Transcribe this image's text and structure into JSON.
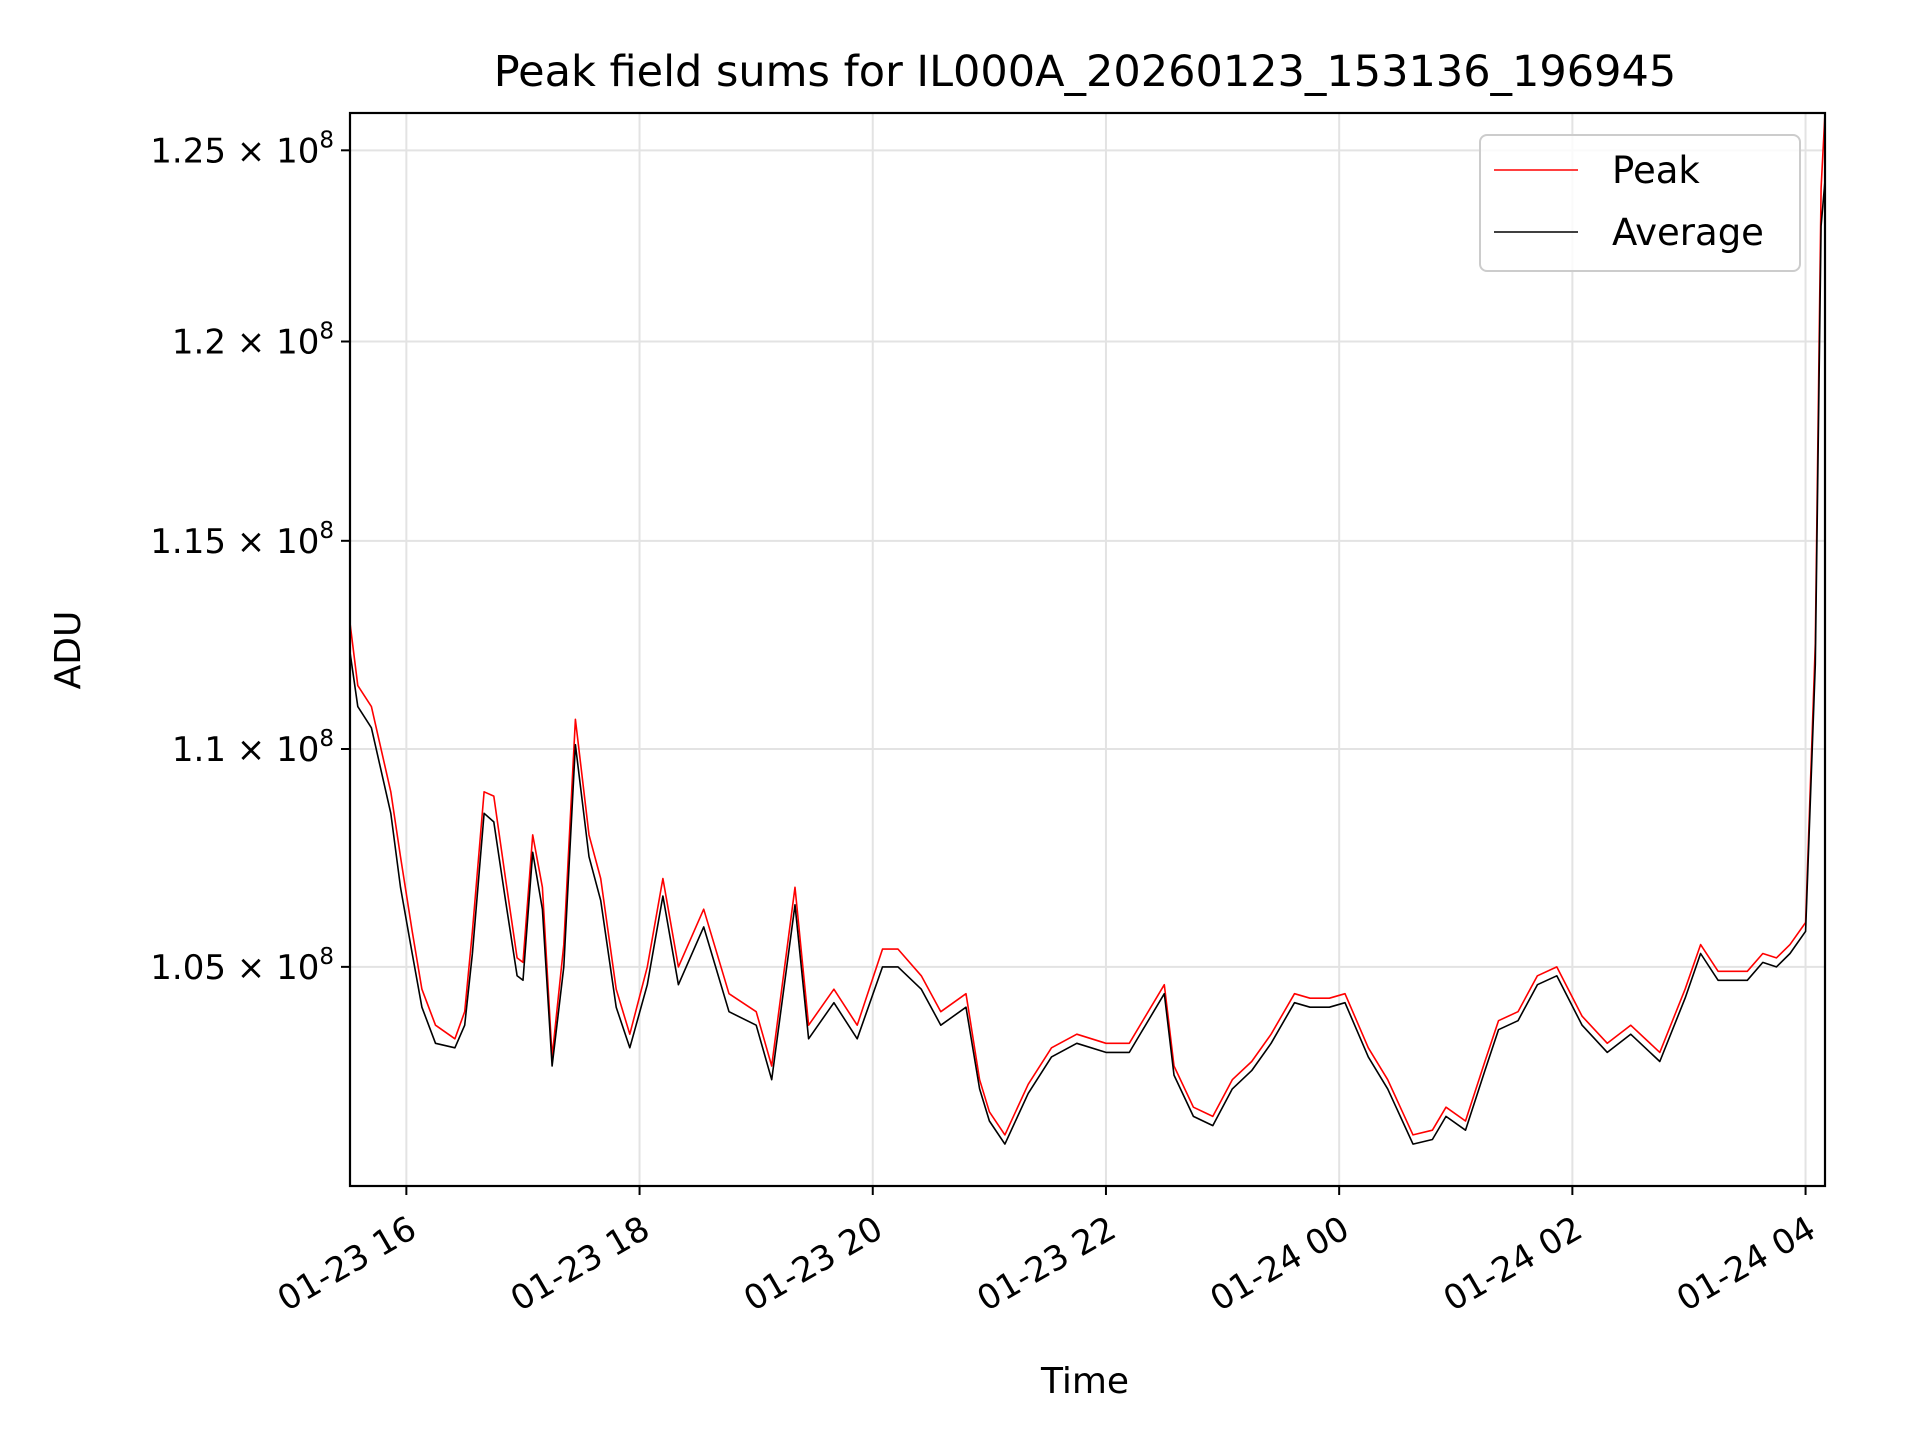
{
  "chart_data": {
    "type": "line",
    "title": "Peak field sums for IL000A_20260123_153136_196945",
    "xlabel": "Time",
    "ylabel": "ADU",
    "x_axis": {
      "type": "datetime",
      "range": [
        "2026-01-23 15:31",
        "2026-01-24 04:10"
      ],
      "ticks": [
        {
          "value": "2026-01-23 16:00",
          "label": "01-23 16"
        },
        {
          "value": "2026-01-23 18:00",
          "label": "01-23 18"
        },
        {
          "value": "2026-01-23 20:00",
          "label": "01-23 20"
        },
        {
          "value": "2026-01-23 22:00",
          "label": "01-23 22"
        },
        {
          "value": "2026-01-24 00:00",
          "label": "01-24 00"
        },
        {
          "value": "2026-01-24 02:00",
          "label": "01-24 02"
        },
        {
          "value": "2026-01-24 04:00",
          "label": "01-24 04"
        }
      ]
    },
    "y_axis": {
      "scale": "log",
      "range": [
        100200000,
        126000000
      ],
      "ticks": [
        {
          "value": 105000000,
          "mantissa": "1.05",
          "exponent": "8"
        },
        {
          "value": 110000000,
          "mantissa": "1.1",
          "exponent": "8"
        },
        {
          "value": 115000000,
          "mantissa": "1.15",
          "exponent": "8"
        },
        {
          "value": 120000000,
          "mantissa": "1.2",
          "exponent": "8"
        },
        {
          "value": 125000000,
          "mantissa": "1.25",
          "exponent": "8"
        }
      ],
      "times_sign": "×",
      "base": "10"
    },
    "grid": true,
    "legend": {
      "placement": "upper right"
    },
    "series": [
      {
        "name": "Peak",
        "color": "#ff0000",
        "points": [
          [
            "2026-01-23 15:31",
            113000000
          ],
          [
            "2026-01-23 15:35",
            111500000
          ],
          [
            "2026-01-23 15:42",
            111000000
          ],
          [
            "2026-01-23 15:52",
            109000000
          ],
          [
            "2026-01-23 15:57",
            107500000
          ],
          [
            "2026-01-23 16:03",
            105800000
          ],
          [
            "2026-01-23 16:08",
            104500000
          ],
          [
            "2026-01-23 16:15",
            103700000
          ],
          [
            "2026-01-23 16:25",
            103400000
          ],
          [
            "2026-01-23 16:30",
            104000000
          ],
          [
            "2026-01-23 16:34",
            105800000
          ],
          [
            "2026-01-23 16:40",
            109000000
          ],
          [
            "2026-01-23 16:45",
            108900000
          ],
          [
            "2026-01-23 16:51",
            107000000
          ],
          [
            "2026-01-23 16:57",
            105200000
          ],
          [
            "2026-01-23 17:00",
            105100000
          ],
          [
            "2026-01-23 17:05",
            108000000
          ],
          [
            "2026-01-23 17:10",
            106800000
          ],
          [
            "2026-01-23 17:15",
            103000000
          ],
          [
            "2026-01-23 17:21",
            105500000
          ],
          [
            "2026-01-23 17:27",
            110700000
          ],
          [
            "2026-01-23 17:34",
            108000000
          ],
          [
            "2026-01-23 17:40",
            107000000
          ],
          [
            "2026-01-23 17:48",
            104500000
          ],
          [
            "2026-01-23 17:55",
            103500000
          ],
          [
            "2026-01-23 18:04",
            105000000
          ],
          [
            "2026-01-23 18:12",
            107000000
          ],
          [
            "2026-01-23 18:20",
            105000000
          ],
          [
            "2026-01-23 18:33",
            106300000
          ],
          [
            "2026-01-23 18:46",
            104400000
          ],
          [
            "2026-01-23 19:00",
            104000000
          ],
          [
            "2026-01-23 19:08",
            102800000
          ],
          [
            "2026-01-23 19:20",
            106800000
          ],
          [
            "2026-01-23 19:27",
            103700000
          ],
          [
            "2026-01-23 19:40",
            104500000
          ],
          [
            "2026-01-23 19:52",
            103700000
          ],
          [
            "2026-01-23 20:05",
            105400000
          ],
          [
            "2026-01-23 20:13",
            105400000
          ],
          [
            "2026-01-23 20:25",
            104800000
          ],
          [
            "2026-01-23 20:35",
            104000000
          ],
          [
            "2026-01-23 20:48",
            104400000
          ],
          [
            "2026-01-23 20:55",
            102500000
          ],
          [
            "2026-01-23 21:00",
            101800000
          ],
          [
            "2026-01-23 21:08",
            101300000
          ],
          [
            "2026-01-23 21:20",
            102400000
          ],
          [
            "2026-01-23 21:32",
            103200000
          ],
          [
            "2026-01-23 21:45",
            103500000
          ],
          [
            "2026-01-23 22:00",
            103300000
          ],
          [
            "2026-01-23 22:12",
            103300000
          ],
          [
            "2026-01-23 22:30",
            104600000
          ],
          [
            "2026-01-23 22:35",
            102800000
          ],
          [
            "2026-01-23 22:45",
            101900000
          ],
          [
            "2026-01-23 22:55",
            101700000
          ],
          [
            "2026-01-23 23:05",
            102500000
          ],
          [
            "2026-01-23 23:15",
            102900000
          ],
          [
            "2026-01-23 23:25",
            103500000
          ],
          [
            "2026-01-23 23:37",
            104400000
          ],
          [
            "2026-01-23 23:45",
            104300000
          ],
          [
            "2026-01-23 23:55",
            104300000
          ],
          [
            "2026-01-24 00:03",
            104400000
          ],
          [
            "2026-01-24 00:15",
            103200000
          ],
          [
            "2026-01-24 00:25",
            102500000
          ],
          [
            "2026-01-24 00:38",
            101300000
          ],
          [
            "2026-01-24 00:48",
            101400000
          ],
          [
            "2026-01-24 00:55",
            101900000
          ],
          [
            "2026-01-24 01:05",
            101600000
          ],
          [
            "2026-01-24 01:15",
            102900000
          ],
          [
            "2026-01-24 01:22",
            103800000
          ],
          [
            "2026-01-24 01:32",
            104000000
          ],
          [
            "2026-01-24 01:42",
            104800000
          ],
          [
            "2026-01-24 01:52",
            105000000
          ],
          [
            "2026-01-24 02:05",
            103900000
          ],
          [
            "2026-01-24 02:18",
            103300000
          ],
          [
            "2026-01-24 02:30",
            103700000
          ],
          [
            "2026-01-24 02:45",
            103100000
          ],
          [
            "2026-01-24 02:58",
            104500000
          ],
          [
            "2026-01-24 03:06",
            105500000
          ],
          [
            "2026-01-24 03:15",
            104900000
          ],
          [
            "2026-01-24 03:23",
            104900000
          ],
          [
            "2026-01-24 03:30",
            104900000
          ],
          [
            "2026-01-24 03:38",
            105300000
          ],
          [
            "2026-01-24 03:45",
            105200000
          ],
          [
            "2026-01-24 03:52",
            105500000
          ],
          [
            "2026-01-24 04:00",
            106000000
          ],
          [
            "2026-01-24 04:05",
            112500000
          ],
          [
            "2026-01-24 04:08",
            124000000
          ],
          [
            "2026-01-24 04:10",
            126000000
          ]
        ]
      },
      {
        "name": "Average",
        "color": "#000000",
        "points": [
          [
            "2026-01-23 15:31",
            112300000
          ],
          [
            "2026-01-23 15:35",
            111000000
          ],
          [
            "2026-01-23 15:42",
            110500000
          ],
          [
            "2026-01-23 15:52",
            108500000
          ],
          [
            "2026-01-23 15:57",
            106800000
          ],
          [
            "2026-01-23 16:03",
            105300000
          ],
          [
            "2026-01-23 16:08",
            104100000
          ],
          [
            "2026-01-23 16:15",
            103300000
          ],
          [
            "2026-01-23 16:25",
            103200000
          ],
          [
            "2026-01-23 16:30",
            103700000
          ],
          [
            "2026-01-23 16:34",
            105300000
          ],
          [
            "2026-01-23 16:40",
            108500000
          ],
          [
            "2026-01-23 16:45",
            108300000
          ],
          [
            "2026-01-23 16:51",
            106500000
          ],
          [
            "2026-01-23 16:57",
            104800000
          ],
          [
            "2026-01-23 17:00",
            104700000
          ],
          [
            "2026-01-23 17:05",
            107600000
          ],
          [
            "2026-01-23 17:10",
            106300000
          ],
          [
            "2026-01-23 17:15",
            102800000
          ],
          [
            "2026-01-23 17:21",
            105000000
          ],
          [
            "2026-01-23 17:27",
            110100000
          ],
          [
            "2026-01-23 17:34",
            107500000
          ],
          [
            "2026-01-23 17:40",
            106500000
          ],
          [
            "2026-01-23 17:48",
            104100000
          ],
          [
            "2026-01-23 17:55",
            103200000
          ],
          [
            "2026-01-23 18:04",
            104600000
          ],
          [
            "2026-01-23 18:12",
            106600000
          ],
          [
            "2026-01-23 18:20",
            104600000
          ],
          [
            "2026-01-23 18:33",
            105900000
          ],
          [
            "2026-01-23 18:46",
            104000000
          ],
          [
            "2026-01-23 19:00",
            103700000
          ],
          [
            "2026-01-23 19:08",
            102500000
          ],
          [
            "2026-01-23 19:20",
            106400000
          ],
          [
            "2026-01-23 19:27",
            103400000
          ],
          [
            "2026-01-23 19:40",
            104200000
          ],
          [
            "2026-01-23 19:52",
            103400000
          ],
          [
            "2026-01-23 20:05",
            105000000
          ],
          [
            "2026-01-23 20:13",
            105000000
          ],
          [
            "2026-01-23 20:25",
            104500000
          ],
          [
            "2026-01-23 20:35",
            103700000
          ],
          [
            "2026-01-23 20:48",
            104100000
          ],
          [
            "2026-01-23 20:55",
            102300000
          ],
          [
            "2026-01-23 21:00",
            101600000
          ],
          [
            "2026-01-23 21:08",
            101100000
          ],
          [
            "2026-01-23 21:20",
            102200000
          ],
          [
            "2026-01-23 21:32",
            103000000
          ],
          [
            "2026-01-23 21:45",
            103300000
          ],
          [
            "2026-01-23 22:00",
            103100000
          ],
          [
            "2026-01-23 22:12",
            103100000
          ],
          [
            "2026-01-23 22:30",
            104400000
          ],
          [
            "2026-01-23 22:35",
            102600000
          ],
          [
            "2026-01-23 22:45",
            101700000
          ],
          [
            "2026-01-23 22:55",
            101500000
          ],
          [
            "2026-01-23 23:05",
            102300000
          ],
          [
            "2026-01-23 23:15",
            102700000
          ],
          [
            "2026-01-23 23:25",
            103300000
          ],
          [
            "2026-01-23 23:37",
            104200000
          ],
          [
            "2026-01-23 23:45",
            104100000
          ],
          [
            "2026-01-23 23:55",
            104100000
          ],
          [
            "2026-01-24 00:03",
            104200000
          ],
          [
            "2026-01-24 00:15",
            103000000
          ],
          [
            "2026-01-24 00:25",
            102300000
          ],
          [
            "2026-01-24 00:38",
            101100000
          ],
          [
            "2026-01-24 00:48",
            101200000
          ],
          [
            "2026-01-24 00:55",
            101700000
          ],
          [
            "2026-01-24 01:05",
            101400000
          ],
          [
            "2026-01-24 01:15",
            102700000
          ],
          [
            "2026-01-24 01:22",
            103600000
          ],
          [
            "2026-01-24 01:32",
            103800000
          ],
          [
            "2026-01-24 01:42",
            104600000
          ],
          [
            "2026-01-24 01:52",
            104800000
          ],
          [
            "2026-01-24 02:05",
            103700000
          ],
          [
            "2026-01-24 02:18",
            103100000
          ],
          [
            "2026-01-24 02:30",
            103500000
          ],
          [
            "2026-01-24 02:45",
            102900000
          ],
          [
            "2026-01-24 02:58",
            104300000
          ],
          [
            "2026-01-24 03:06",
            105300000
          ],
          [
            "2026-01-24 03:15",
            104700000
          ],
          [
            "2026-01-24 03:23",
            104700000
          ],
          [
            "2026-01-24 03:30",
            104700000
          ],
          [
            "2026-01-24 03:38",
            105100000
          ],
          [
            "2026-01-24 03:45",
            105000000
          ],
          [
            "2026-01-24 03:52",
            105300000
          ],
          [
            "2026-01-24 04:00",
            105800000
          ],
          [
            "2026-01-24 04:05",
            112000000
          ],
          [
            "2026-01-24 04:08",
            123000000
          ],
          [
            "2026-01-24 04:10",
            124200000
          ]
        ]
      }
    ]
  }
}
